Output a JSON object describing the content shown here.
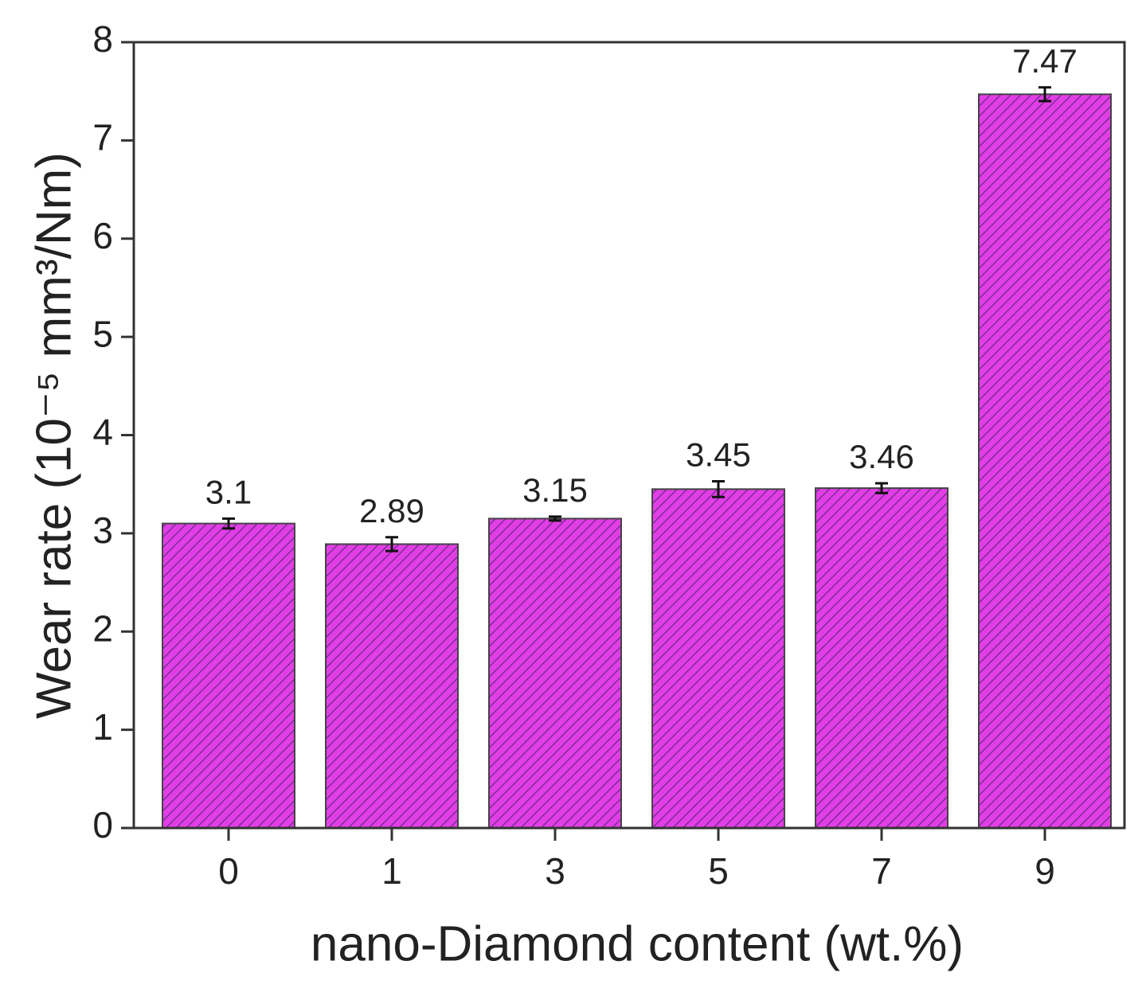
{
  "chart_data": {
    "type": "bar",
    "xlabel": "nano-Diamond content (wt.%)",
    "ylabel": "Wear rate (10⁻⁵ mm³/Nm)",
    "categories": [
      "0",
      "1",
      "3",
      "5",
      "7",
      "9"
    ],
    "values": [
      3.1,
      2.89,
      3.15,
      3.45,
      3.46,
      7.47
    ],
    "errors": [
      0.05,
      0.07,
      0.02,
      0.08,
      0.05,
      0.07
    ],
    "color": "#e23ee6",
    "ylim": [
      0,
      8
    ],
    "yticks": [
      0,
      1,
      2,
      3,
      4,
      5,
      6,
      7,
      8
    ]
  }
}
